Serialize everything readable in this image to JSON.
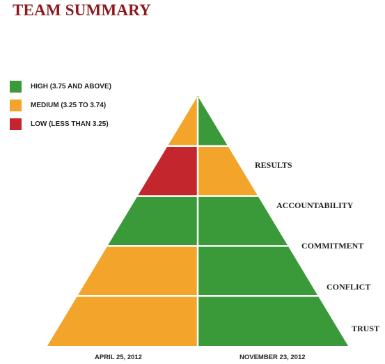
{
  "title": "TEAM SUMMARY",
  "colors": {
    "high": "#3a9a3a",
    "medium": "#f2a52a",
    "low": "#c4262e"
  },
  "legend": [
    {
      "key": "high",
      "label": "HIGH (3.75 AND ABOVE)"
    },
    {
      "key": "medium",
      "label": "MEDIUM (3.25 TO 3.74)"
    },
    {
      "key": "low",
      "label": "LOW (LESS THAN 3.25)"
    }
  ],
  "levels": [
    {
      "label": "RESULTS",
      "left": "medium",
      "right": "high"
    },
    {
      "label": "ACCOUNTABILITY",
      "left": "low",
      "right": "medium"
    },
    {
      "label": "COMMITMENT",
      "left": "high",
      "right": "high"
    },
    {
      "label": "CONFLICT",
      "left": "medium",
      "right": "high"
    },
    {
      "label": "TRUST",
      "left": "medium",
      "right": "high"
    }
  ],
  "dates": {
    "left": "APRIL 25, 2012",
    "right": "NOVEMBER 23, 2012"
  }
}
